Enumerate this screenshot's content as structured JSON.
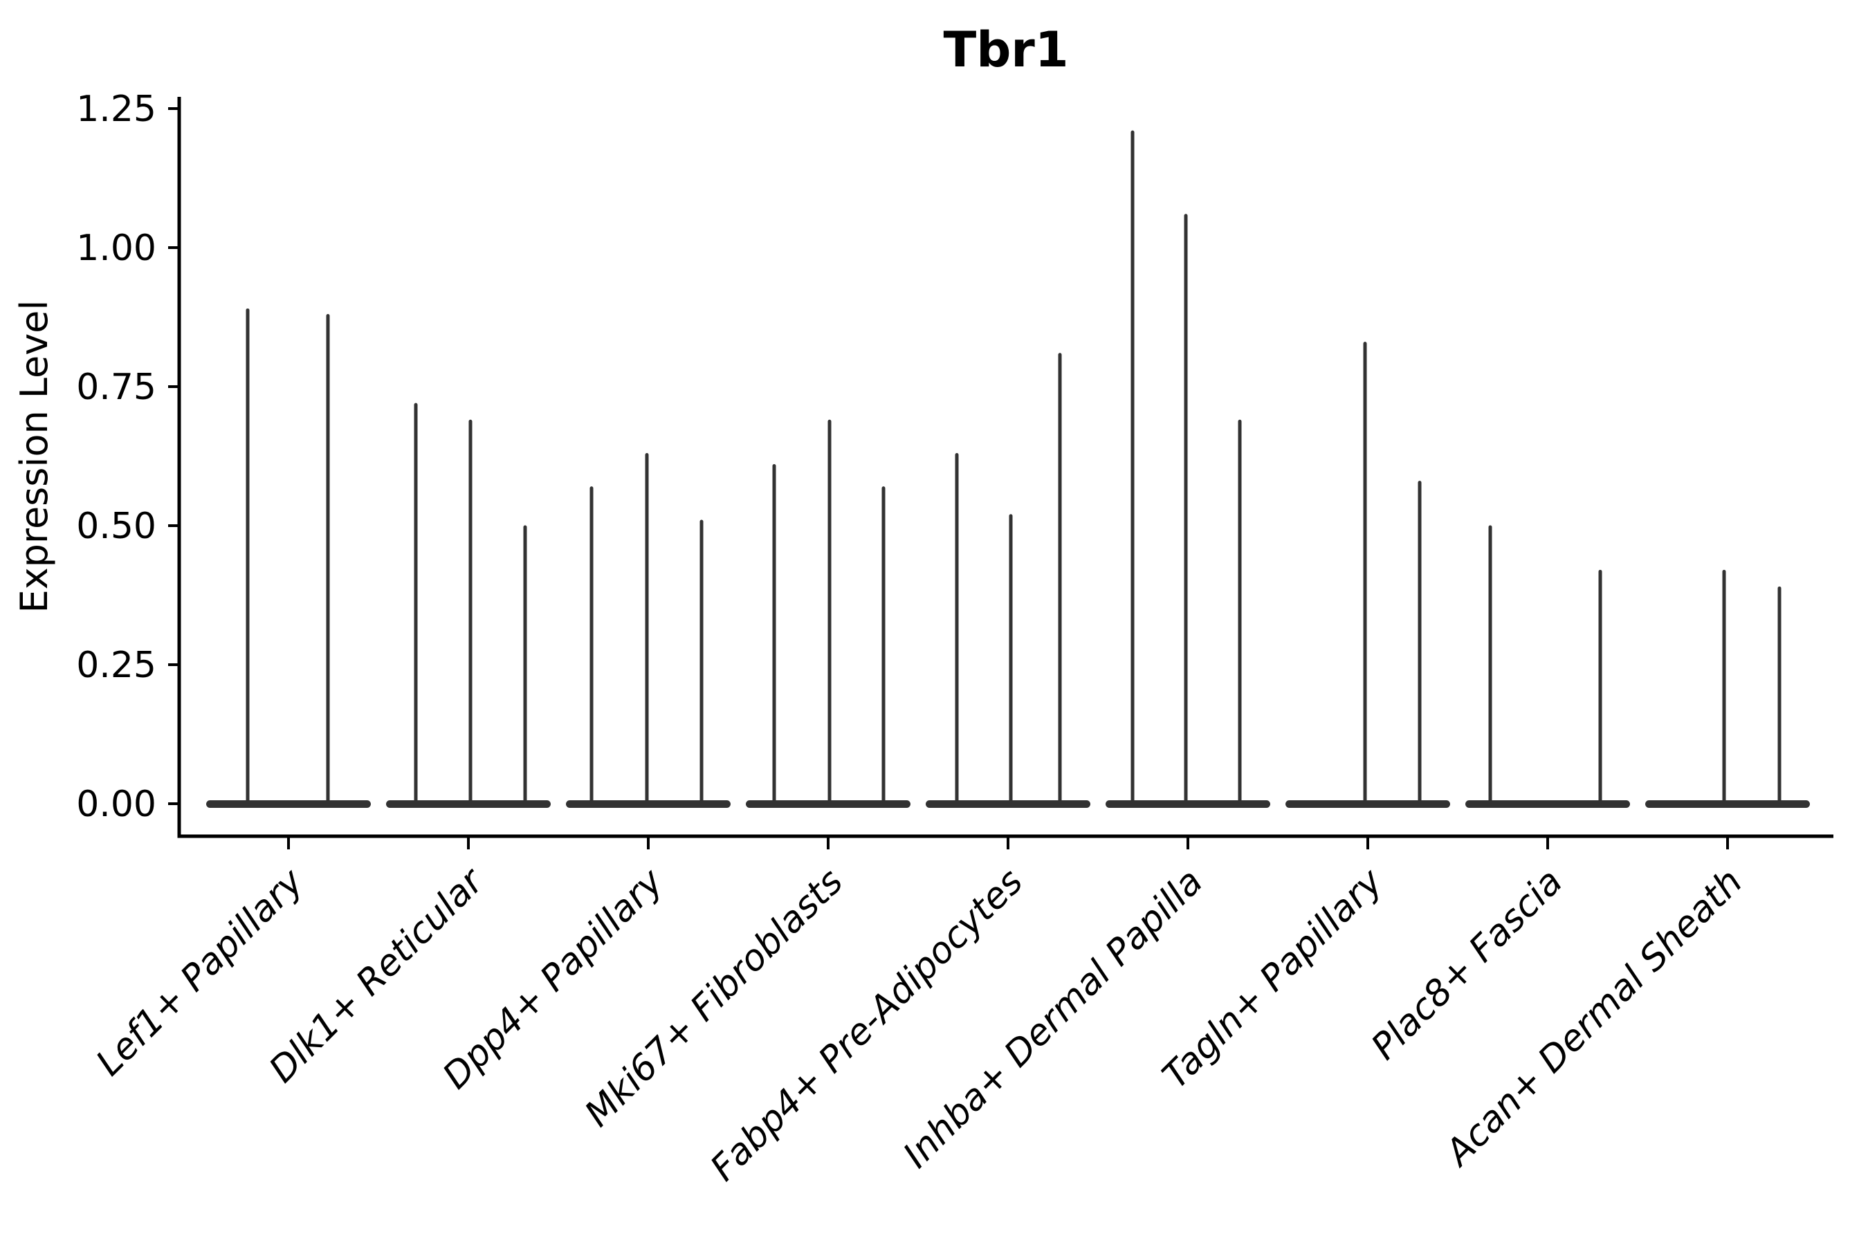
{
  "chart_data": {
    "type": "violin",
    "title": "Tbr1",
    "xlabel": "",
    "ylabel": "Expression Level",
    "ylim": [
      -0.06,
      1.27
    ],
    "yticks": [
      0,
      0.25,
      0.5,
      0.75,
      1.0,
      1.25
    ],
    "ytick_labels": [
      "0.00",
      "0.25",
      "0.50",
      "0.75",
      "1.00",
      "1.25"
    ],
    "grid": false,
    "legend": "none",
    "violin_color": "#323232",
    "style": "needle violins: flat density disc at 0 with thin spike rising to max expression",
    "categories": [
      "Lef1+ Papillary",
      "Dlk1+ Reticular",
      "Dpp4+ Papillary",
      "Mki67+ Fibroblasts",
      "Fabp4+ Pre-Adipocytes",
      "Inhba+ Dermal Papilla",
      "Tagln+ Papillary",
      "Plac8+ Fascia",
      "Acan+ Dermal Sheath"
    ],
    "groups": [
      {
        "category": "Lef1+ Papillary",
        "violins": [
          {
            "dx": -59,
            "max": 0.89
          },
          {
            "dx": 57,
            "max": 0.88
          }
        ]
      },
      {
        "category": "Dlk1+ Reticular",
        "violins": [
          {
            "dx": -76,
            "max": 0.72
          },
          {
            "dx": 3,
            "max": 0.69
          },
          {
            "dx": 82,
            "max": 0.5
          }
        ]
      },
      {
        "category": "Dpp4+ Papillary",
        "violins": [
          {
            "dx": -82,
            "max": 0.57
          },
          {
            "dx": -2,
            "max": 0.63
          },
          {
            "dx": 77,
            "max": 0.51
          }
        ]
      },
      {
        "category": "Mki67+ Fibroblasts",
        "violins": [
          {
            "dx": -78,
            "max": 0.61
          },
          {
            "dx": 2,
            "max": 0.69
          },
          {
            "dx": 80,
            "max": 0.57
          }
        ]
      },
      {
        "category": "Fabp4+ Pre-Adipocytes",
        "violins": [
          {
            "dx": -74,
            "max": 0.63
          },
          {
            "dx": 4,
            "max": 0.52
          },
          {
            "dx": 75,
            "max": 0.81
          }
        ]
      },
      {
        "category": "Inhba+ Dermal Papilla",
        "violins": [
          {
            "dx": -80,
            "max": 1.21
          },
          {
            "dx": -3,
            "max": 1.06
          },
          {
            "dx": 75,
            "max": 0.69
          }
        ]
      },
      {
        "category": "Tagln+ Papillary",
        "violins": [
          {
            "dx": -4,
            "max": 0.83
          },
          {
            "dx": 75,
            "max": 0.58
          }
        ]
      },
      {
        "category": "Plac8+ Fascia",
        "violins": [
          {
            "dx": -83,
            "max": 0.5
          },
          {
            "dx": 76,
            "max": 0.42
          }
        ]
      },
      {
        "category": "Acan+ Dermal Sheath",
        "violins": [
          {
            "dx": -5,
            "max": 0.42
          },
          {
            "dx": 75,
            "max": 0.39
          }
        ]
      }
    ]
  }
}
